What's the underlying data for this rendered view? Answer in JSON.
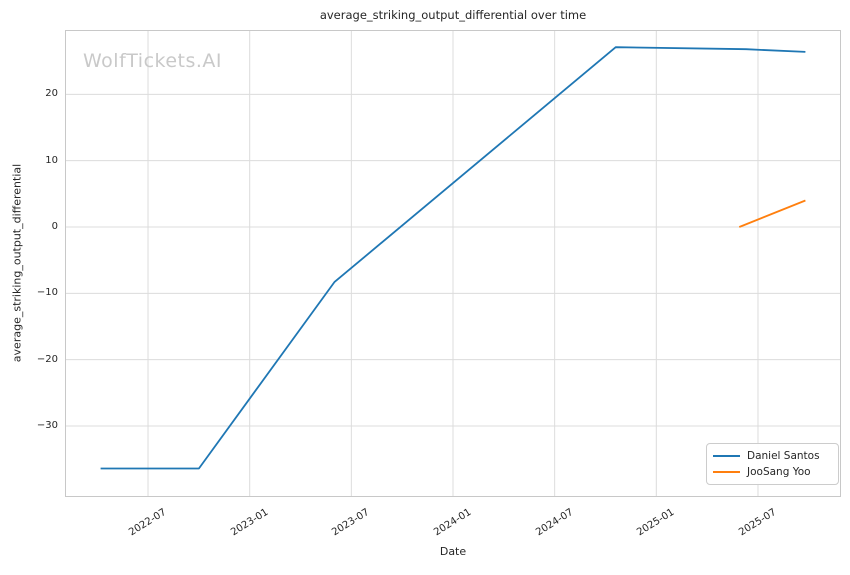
{
  "watermark": "WolfTickets.AI",
  "colors": {
    "series_blue": "#1f77b4",
    "series_orange": "#ff7f0e",
    "grid": "#dcdcdc",
    "spine": "#c8c8c8",
    "watermark": "#c9c9c9",
    "text": "#262626"
  },
  "chart_data": {
    "type": "line",
    "title": "average_striking_output_differential over time",
    "xlabel": "Date",
    "ylabel": "average_striking_output_differential",
    "grid": true,
    "legend_position": "lower right",
    "x_unit": "months since 2022-01",
    "xlim": [
      1.1,
      46.9
    ],
    "ylim": [
      -40.7,
      29.7
    ],
    "x_ticks": [
      {
        "x": 6,
        "label": "2022-07"
      },
      {
        "x": 12,
        "label": "2023-01"
      },
      {
        "x": 18,
        "label": "2023-07"
      },
      {
        "x": 24,
        "label": "2024-01"
      },
      {
        "x": 30,
        "label": "2024-07"
      },
      {
        "x": 36,
        "label": "2025-01"
      },
      {
        "x": 42,
        "label": "2025-07"
      }
    ],
    "y_ticks": [
      {
        "y": 20,
        "label": "20"
      },
      {
        "y": 10,
        "label": "10"
      },
      {
        "y": 0,
        "label": "0"
      },
      {
        "y": -10,
        "label": "−10"
      },
      {
        "y": -20,
        "label": "−20"
      },
      {
        "y": -30,
        "label": "−30"
      }
    ],
    "series": [
      {
        "name": "Daniel Santos",
        "color": "#1f77b4",
        "points": [
          {
            "date": "2022-04",
            "x": 3.2,
            "y": -36.4
          },
          {
            "date": "2022-10",
            "x": 9.0,
            "y": -36.4
          },
          {
            "date": "2023-06",
            "x": 17.0,
            "y": -8.3
          },
          {
            "date": "2024-10",
            "x": 33.6,
            "y": 27.1
          },
          {
            "date": "2025-06",
            "x": 41.3,
            "y": 26.8
          },
          {
            "date": "2025-10",
            "x": 44.8,
            "y": 26.4
          }
        ]
      },
      {
        "name": "JooSang Yoo",
        "color": "#ff7f0e",
        "points": [
          {
            "date": "2025-06",
            "x": 40.9,
            "y": 0.0
          },
          {
            "date": "2025-10",
            "x": 44.8,
            "y": 4.0
          }
        ]
      }
    ]
  }
}
